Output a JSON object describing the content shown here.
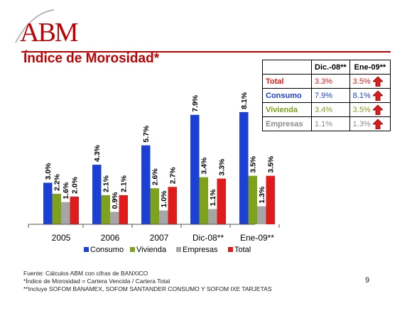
{
  "logo_text": "ABM",
  "title": "Índice de Morosidad*",
  "colors": {
    "Consumo": "#1c3fd6",
    "Vivienda": "#7fa21c",
    "Empresas": "#a6a6a6",
    "Total": "#e01b1b",
    "title": "#c00000"
  },
  "chart_data": {
    "type": "bar",
    "categories": [
      "2005",
      "2006",
      "2007",
      "Dic-08**",
      "Ene-09**"
    ],
    "series": [
      {
        "name": "Consumo",
        "values": [
          3.0,
          4.3,
          5.7,
          7.9,
          8.1
        ],
        "labels": [
          "3.0%",
          "4.3%",
          "5.7%",
          "7.9%",
          "8.1%"
        ]
      },
      {
        "name": "Vivienda",
        "values": [
          2.2,
          2.1,
          2.6,
          3.4,
          3.5
        ],
        "labels": [
          "2.2%",
          "2.1%",
          "2.6%",
          "3.4%",
          "3.5%"
        ]
      },
      {
        "name": "Empresas",
        "values": [
          1.6,
          0.9,
          1.0,
          1.1,
          1.3
        ],
        "labels": [
          "1.6%",
          "0.9%",
          "1.0%",
          "1.1%",
          "1.3%"
        ]
      },
      {
        "name": "Total",
        "values": [
          2.0,
          2.1,
          2.7,
          3.3,
          3.5
        ],
        "labels": [
          "2.0%",
          "2.1%",
          "2.7%",
          "3.3%",
          "3.5%"
        ]
      }
    ],
    "title": "",
    "xlabel": "",
    "ylabel": "",
    "ylim": [
      0,
      9
    ],
    "grid": false,
    "legend": "bottom"
  },
  "table": {
    "headers": [
      "",
      "Dic.-08**",
      "Ene-09**"
    ],
    "rows": [
      {
        "label": "Total",
        "dic": "3.3%",
        "ene": "3.5%",
        "color": "#e01b1b"
      },
      {
        "label": "Consumo",
        "dic": "7.9%",
        "ene": "8.1%",
        "color": "#1c3fd6"
      },
      {
        "label": "Vivienda",
        "dic": "3.4%",
        "ene": "3.5%",
        "color": "#7fa21c"
      },
      {
        "label": "Empresas",
        "dic": "1.1%",
        "ene": "1.3%",
        "color": "#8c8c8c"
      }
    ],
    "arrow_icon": "up-arrow-icon"
  },
  "footer": {
    "source": "Fuente: Cálculos ABM con cifras de BANXICO",
    "note1": "*Índice de Morosidad = Cartera Vencida / Cartera Total",
    "note2": "**Incluye SOFOM BANAMEX, SOFOM SANTANDER CONSUMO Y SOFOM IXE TARJETAS"
  },
  "page_number": "9"
}
